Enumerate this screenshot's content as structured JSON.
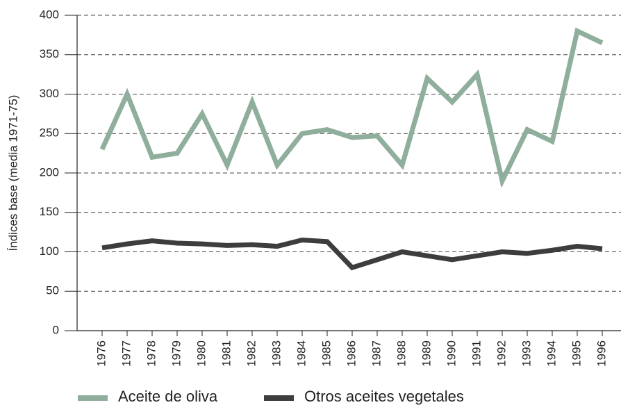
{
  "chart_data": {
    "type": "line",
    "y_label": "Índices base (media 1971-75)",
    "categories": [
      "1976",
      "1977",
      "1978",
      "1979",
      "1980",
      "1981",
      "1982",
      "1983",
      "1984",
      "1985",
      "1986",
      "1987",
      "1988",
      "1989",
      "1990",
      "1991",
      "1992",
      "1993",
      "1994",
      "1995",
      "1996"
    ],
    "series": [
      {
        "name": "Aceite de oliva",
        "color": "#8fae9c",
        "values": [
          230,
          300,
          220,
          225,
          275,
          210,
          290,
          210,
          250,
          255,
          245,
          247,
          210,
          320,
          290,
          325,
          190,
          255,
          240,
          380,
          365
        ]
      },
      {
        "name": "Otros aceites vegetales",
        "color": "#3d3d3d",
        "values": [
          105,
          110,
          114,
          111,
          110,
          108,
          109,
          107,
          115,
          113,
          80,
          90,
          100,
          95,
          90,
          95,
          100,
          98,
          102,
          107,
          104
        ]
      }
    ],
    "ylim": [
      0,
      400
    ],
    "yticks": [
      0,
      50,
      100,
      150,
      200,
      250,
      300,
      350,
      400
    ],
    "grid": true
  }
}
